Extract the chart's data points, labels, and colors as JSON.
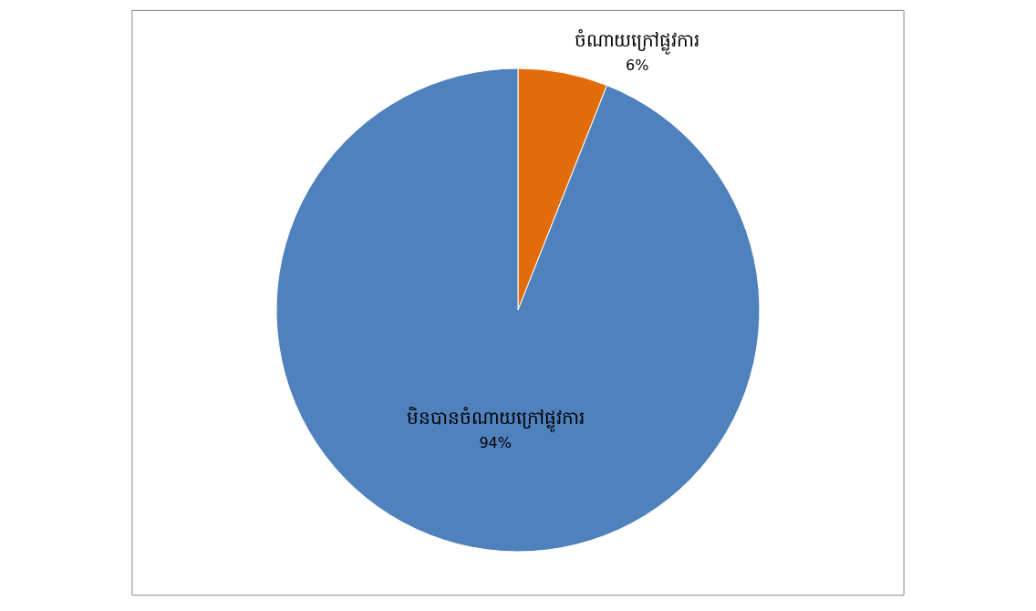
{
  "chart_data": {
    "type": "pie",
    "categories": [
      "ចំណាយក្រៅផ្លូវការ",
      "មិនបានចំណាយក្រៅផ្លូវការ"
    ],
    "values": [
      6,
      94
    ],
    "colors": [
      "#e36c0a",
      "#4f81bd"
    ],
    "value_labels": [
      "6%",
      "94%"
    ],
    "legend": false
  }
}
